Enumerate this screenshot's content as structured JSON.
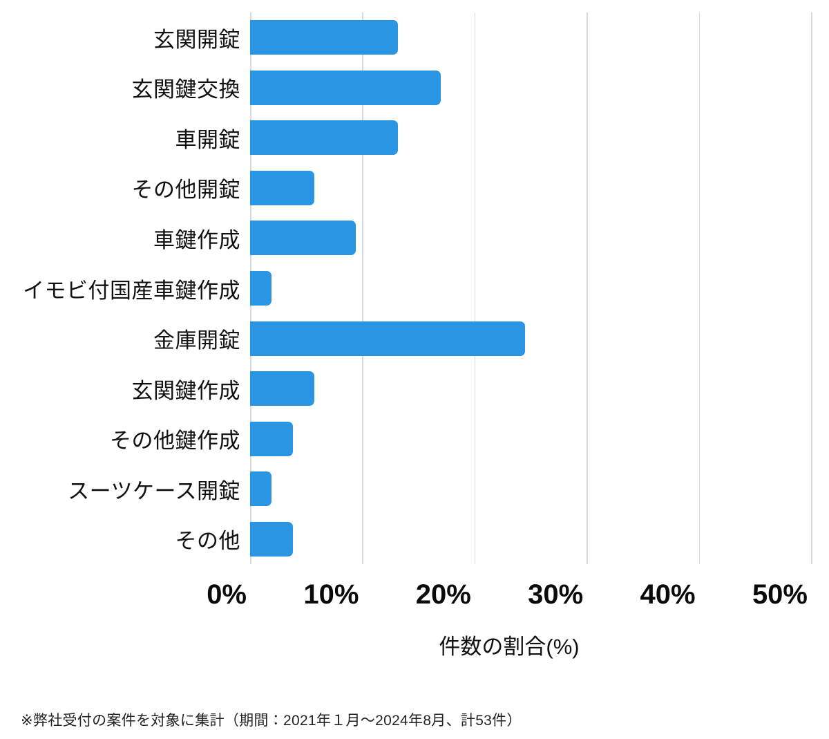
{
  "chart_data": {
    "type": "bar",
    "orientation": "horizontal",
    "title": "",
    "xlabel": "件数の割合(%)",
    "ylabel": "",
    "categories": [
      "玄関開錠",
      "玄関鍵交換",
      "車開錠",
      "その他開錠",
      "車鍵作成",
      "イモビ付国産車鍵作成",
      "金庫開錠",
      "玄関鍵作成",
      "その他鍵作成",
      "スーツケース開錠",
      "その他"
    ],
    "values": [
      13.2,
      17.0,
      13.2,
      5.7,
      9.4,
      1.9,
      24.5,
      5.7,
      3.8,
      1.9,
      3.8
    ],
    "value_unit": "%",
    "xlim": [
      0,
      50
    ],
    "x_ticks": [
      "0%",
      "10%",
      "20%",
      "30%",
      "40%",
      "50%"
    ],
    "x_tick_values": [
      0,
      10,
      20,
      30,
      40,
      50
    ],
    "grid": "vertical",
    "legend_position": "none",
    "bar_color": "#2a95e3",
    "gridline_color": "#d9d9d9"
  },
  "footnote": "※弊社受付の案件を対象に集計（期間：2021年１月〜2024年8月、計53件）"
}
